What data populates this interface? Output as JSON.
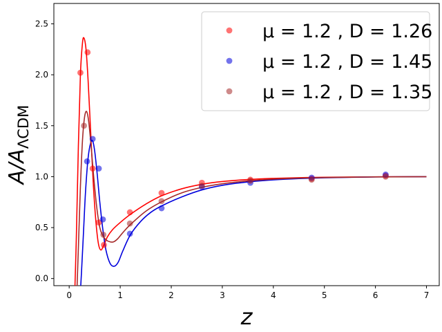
{
  "chart_data": {
    "type": "scatter",
    "xlabel": "z",
    "ylabel": "A/A_ΛCDM",
    "xlim": [
      -0.3,
      7.25
    ],
    "ylim": [
      -0.07,
      2.7
    ],
    "xticks": [
      0,
      1,
      2,
      3,
      4,
      5,
      6,
      7
    ],
    "yticks": [
      0.0,
      0.5,
      1.0,
      1.5,
      2.0,
      2.5
    ],
    "legend_position": "top-right",
    "grid": false,
    "series": [
      {
        "name": "μ = 1.2 , D = 1.26",
        "color": "#ff0000",
        "points": [
          {
            "x": 0.22,
            "y": 2.02
          },
          {
            "x": 0.36,
            "y": 2.22
          },
          {
            "x": 0.46,
            "y": 1.08
          },
          {
            "x": 0.58,
            "y": 0.55
          },
          {
            "x": 0.68,
            "y": 0.33
          },
          {
            "x": 1.19,
            "y": 0.65
          },
          {
            "x": 1.81,
            "y": 0.84
          },
          {
            "x": 2.6,
            "y": 0.94
          },
          {
            "x": 3.55,
            "y": 0.97
          },
          {
            "x": 4.75,
            "y": 0.98
          },
          {
            "x": 6.2,
            "y": 1.01
          }
        ],
        "curve": [
          [
            0.1,
            -0.3
          ],
          [
            0.14,
            0.4
          ],
          [
            0.18,
            1.3
          ],
          [
            0.22,
            2.0
          ],
          [
            0.26,
            2.31
          ],
          [
            0.29,
            2.36
          ],
          [
            0.33,
            2.25
          ],
          [
            0.37,
            1.95
          ],
          [
            0.42,
            1.45
          ],
          [
            0.47,
            0.95
          ],
          [
            0.52,
            0.58
          ],
          [
            0.57,
            0.35
          ],
          [
            0.62,
            0.28
          ],
          [
            0.68,
            0.33
          ],
          [
            0.75,
            0.41
          ],
          [
            0.85,
            0.48
          ],
          [
            1.0,
            0.55
          ],
          [
            1.2,
            0.63
          ],
          [
            1.5,
            0.73
          ],
          [
            1.8,
            0.81
          ],
          [
            2.2,
            0.88
          ],
          [
            2.6,
            0.925
          ],
          [
            3.0,
            0.952
          ],
          [
            3.5,
            0.972
          ],
          [
            4.0,
            0.983
          ],
          [
            4.5,
            0.99
          ],
          [
            5.0,
            0.994
          ],
          [
            6.0,
            0.998
          ],
          [
            7.0,
            1.0
          ]
        ]
      },
      {
        "name": "μ = 1.2 , D = 1.45",
        "color": "#0000dd",
        "points": [
          {
            "x": 0.35,
            "y": 1.15
          },
          {
            "x": 0.46,
            "y": 1.37
          },
          {
            "x": 0.58,
            "y": 1.08
          },
          {
            "x": 0.66,
            "y": 0.58
          },
          {
            "x": 1.19,
            "y": 0.44
          },
          {
            "x": 1.81,
            "y": 0.69
          },
          {
            "x": 2.6,
            "y": 0.9
          },
          {
            "x": 3.55,
            "y": 0.94
          },
          {
            "x": 4.75,
            "y": 0.99
          },
          {
            "x": 6.2,
            "y": 1.02
          }
        ],
        "curve": [
          [
            0.2,
            -0.3
          ],
          [
            0.24,
            0.05
          ],
          [
            0.28,
            0.45
          ],
          [
            0.32,
            0.85
          ],
          [
            0.37,
            1.18
          ],
          [
            0.42,
            1.33
          ],
          [
            0.46,
            1.35
          ],
          [
            0.5,
            1.25
          ],
          [
            0.55,
            1.02
          ],
          [
            0.6,
            0.75
          ],
          [
            0.66,
            0.48
          ],
          [
            0.72,
            0.28
          ],
          [
            0.8,
            0.15
          ],
          [
            0.88,
            0.12
          ],
          [
            0.96,
            0.16
          ],
          [
            1.05,
            0.27
          ],
          [
            1.2,
            0.43
          ],
          [
            1.4,
            0.56
          ],
          [
            1.6,
            0.65
          ],
          [
            1.8,
            0.71
          ],
          [
            2.2,
            0.8
          ],
          [
            2.6,
            0.87
          ],
          [
            3.0,
            0.915
          ],
          [
            3.5,
            0.948
          ],
          [
            4.0,
            0.968
          ],
          [
            4.5,
            0.981
          ],
          [
            5.0,
            0.989
          ],
          [
            6.0,
            0.997
          ],
          [
            7.0,
            1.0
          ]
        ]
      },
      {
        "name": "μ = 1.2 , D = 1.35",
        "color": "#a52a2a",
        "points": [
          {
            "x": 0.29,
            "y": 1.5
          },
          {
            "x": 0.67,
            "y": 0.43
          },
          {
            "x": 1.19,
            "y": 0.54
          },
          {
            "x": 1.81,
            "y": 0.76
          },
          {
            "x": 2.6,
            "y": 0.91
          },
          {
            "x": 3.55,
            "y": 0.96
          },
          {
            "x": 4.75,
            "y": 0.97
          },
          {
            "x": 6.2,
            "y": 1.0
          }
        ],
        "curve": [
          [
            0.14,
            -0.3
          ],
          [
            0.18,
            0.3
          ],
          [
            0.22,
            0.9
          ],
          [
            0.26,
            1.35
          ],
          [
            0.3,
            1.58
          ],
          [
            0.34,
            1.64
          ],
          [
            0.38,
            1.55
          ],
          [
            0.43,
            1.3
          ],
          [
            0.48,
            1.0
          ],
          [
            0.54,
            0.7
          ],
          [
            0.6,
            0.5
          ],
          [
            0.66,
            0.42
          ],
          [
            0.72,
            0.38
          ],
          [
            0.8,
            0.36
          ],
          [
            0.87,
            0.36
          ],
          [
            0.95,
            0.39
          ],
          [
            1.05,
            0.45
          ],
          [
            1.2,
            0.53
          ],
          [
            1.5,
            0.66
          ],
          [
            1.8,
            0.75
          ],
          [
            2.2,
            0.84
          ],
          [
            2.6,
            0.895
          ],
          [
            3.0,
            0.93
          ],
          [
            3.5,
            0.958
          ],
          [
            4.0,
            0.975
          ],
          [
            4.5,
            0.985
          ],
          [
            5.0,
            0.991
          ],
          [
            6.0,
            0.997
          ],
          [
            7.0,
            1.0
          ]
        ]
      }
    ]
  }
}
